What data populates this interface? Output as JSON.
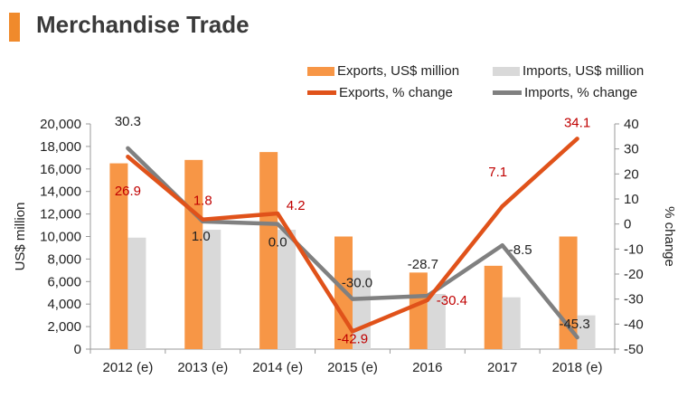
{
  "header": {
    "title": "Merchandise Trade"
  },
  "colors": {
    "accent": "#F08A2C",
    "exports_bar": "#F79646",
    "imports_bar": "#D9D9D9",
    "exports_line": "#E0521A",
    "imports_line": "#808080",
    "exports_label": "#C00000",
    "imports_label": "#222222"
  },
  "chart_data": {
    "type": "bar",
    "categories": [
      "2012 (e)",
      "2013 (e)",
      "2014 (e)",
      "2015 (e)",
      "2016",
      "2017",
      "2018 (e)"
    ],
    "series": [
      {
        "name": "Exports, US$ million",
        "type": "bar",
        "axis": "left",
        "values": [
          16500,
          16800,
          17500,
          10000,
          6800,
          7400,
          10000
        ]
      },
      {
        "name": "Imports, US$ million",
        "type": "bar",
        "axis": "left",
        "values": [
          9900,
          10600,
          10600,
          7000,
          4900,
          4600,
          3000
        ]
      },
      {
        "name": "Exports, % change",
        "type": "line",
        "axis": "right",
        "values": [
          26.9,
          1.8,
          4.2,
          -42.9,
          -30.4,
          7.1,
          34.1
        ]
      },
      {
        "name": "Imports, % change",
        "type": "line",
        "axis": "right",
        "values": [
          30.3,
          1.0,
          0.0,
          -30.0,
          -28.7,
          -8.5,
          -45.3
        ]
      }
    ],
    "data_labels": {
      "exports_pct": [
        "26.9",
        "1.8",
        "4.2",
        "-42.9",
        "-30.4",
        "7.1",
        "34.1"
      ],
      "imports_pct": [
        "30.3",
        "1.0",
        "0.0",
        "-30.0",
        "-28.7",
        "-8.5",
        "-45.3"
      ]
    },
    "ylabel": "US$ million",
    "y2label": "% change",
    "ylim": [
      0,
      20000
    ],
    "y2lim": [
      -50,
      40
    ],
    "yticks": [
      "0",
      "2,000",
      "4,000",
      "6,000",
      "8,000",
      "10,000",
      "12,000",
      "14,000",
      "16,000",
      "18,000",
      "20,000"
    ],
    "y2ticks": [
      "-50",
      "-40",
      "-30",
      "-20",
      "-10",
      "0",
      "10",
      "20",
      "30",
      "40"
    ],
    "grid": false,
    "legend_position": "top-right"
  }
}
